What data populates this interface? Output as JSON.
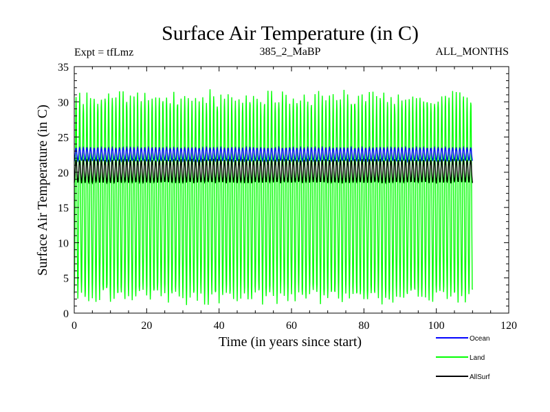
{
  "chart_data": {
    "type": "line",
    "title": "Surface Air Temperature (in C)",
    "subtitle_left": "Expt = tfLmz",
    "subtitle_center": "385_2_MaBP",
    "subtitle_right": "ALL_MONTHS",
    "xlabel": "Time (in years since start)",
    "ylabel": "Surface Air Temperature (in C)",
    "xlim": [
      0,
      120
    ],
    "ylim": [
      0,
      35
    ],
    "xticks": [
      0,
      20,
      40,
      60,
      80,
      100,
      120
    ],
    "yticks": [
      0,
      5,
      10,
      15,
      20,
      25,
      30,
      35
    ],
    "x_end": 110,
    "grid": false,
    "legend_position": "bottom-right",
    "series": [
      {
        "name": "Ocean",
        "color": "#0000ff",
        "cycle": "seasonal",
        "min": 21.6,
        "max": 23.5
      },
      {
        "name": "Land",
        "color": "#00ff00",
        "cycle": "seasonal",
        "min": 1.8,
        "max": 31.0
      },
      {
        "name": "AllSurf",
        "color": "#000000",
        "cycle": "seasonal",
        "min": 18.5,
        "max": 21.8
      }
    ]
  }
}
